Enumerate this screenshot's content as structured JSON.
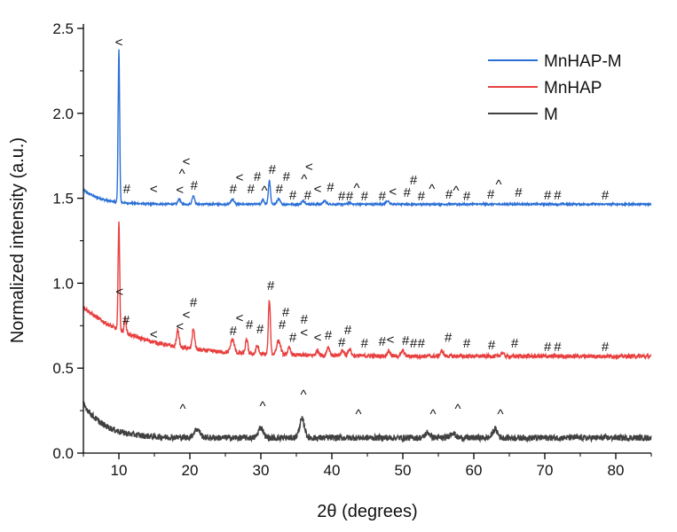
{
  "chart_data": {
    "type": "line",
    "title": "",
    "xlabel": "2θ (degrees)",
    "ylabel": "Normalized intensity (a.u.)",
    "xlim": [
      5,
      85
    ],
    "ylim": [
      0,
      2.5
    ],
    "xticks": [
      10,
      20,
      30,
      40,
      50,
      60,
      70,
      80
    ],
    "yticks": [
      0.0,
      0.5,
      1.0,
      1.5,
      2.0,
      2.5
    ],
    "ytick_labels": [
      "0.0",
      "0.5",
      "1.0",
      "1.5",
      "2.0",
      "2.5"
    ],
    "grid": false,
    "legend_position": "top-right",
    "series": [
      {
        "name": "MnHAP-M",
        "color": "#2a6fd6",
        "baseline": {
          "level": 1.465,
          "start_excess": 0.085,
          "decay": 2.5
        },
        "noise": 0.005,
        "peaks": [
          [
            10,
            0.9,
            0.15
          ],
          [
            18.5,
            0.03,
            0.25
          ],
          [
            20.5,
            0.05,
            0.25
          ],
          [
            26,
            0.03,
            0.3
          ],
          [
            30.3,
            0.03,
            0.2
          ],
          [
            31.2,
            0.14,
            0.2
          ],
          [
            32.5,
            0.03,
            0.3
          ],
          [
            36,
            0.02,
            0.3
          ],
          [
            39,
            0.02,
            0.3
          ],
          [
            47.8,
            0.02,
            0.3
          ],
          [
            42.5,
            0.01,
            0.3
          ]
        ],
        "annotations": [
          [
            "<",
            10,
            2.42
          ],
          [
            "#",
            11.1,
            1.555
          ],
          [
            "<",
            14.9,
            1.555
          ],
          [
            "^",
            18.9,
            1.644
          ],
          [
            "<",
            18.6,
            1.55
          ],
          [
            "<",
            19.5,
            1.519
          ],
          [
            "#",
            20.6,
            1.576
          ],
          [
            "#",
            26.1,
            1.555
          ],
          [
            "<",
            27,
            1.519
          ],
          [
            "#",
            28.6,
            1.555
          ],
          [
            "#",
            29.5,
            1.545
          ],
          [
            "^",
            30.5,
            1.545
          ],
          [
            "#",
            31.6,
            1.67
          ],
          [
            "#",
            32.6,
            1.555
          ],
          [
            "#",
            33.6,
            1.545
          ],
          [
            "#",
            34.5,
            1.519
          ],
          [
            "^",
            36.1,
            1.613
          ],
          [
            "<",
            36.8,
            1.56
          ],
          [
            "#",
            36.6,
            1.519
          ],
          [
            "<",
            38,
            1.555
          ],
          [
            "#",
            39.8,
            1.566
          ],
          [
            "#",
            41.4,
            1.514
          ],
          [
            "#",
            42.5,
            1.514
          ],
          [
            "^",
            43.5,
            1.56
          ],
          [
            "#",
            44.6,
            1.514
          ],
          [
            "#",
            47.1,
            1.514
          ],
          [
            "<",
            48.6,
            1.54
          ],
          [
            "#",
            50.6,
            1.534
          ],
          [
            "#",
            51.5,
            1.514
          ],
          [
            "#",
            52.6,
            1.514
          ],
          [
            "^",
            54.1,
            1.555
          ],
          [
            "#",
            56.5,
            1.524
          ],
          [
            "^",
            57.5,
            1.545
          ],
          [
            "#",
            59,
            1.514
          ],
          [
            "#",
            62.4,
            1.524
          ],
          [
            "^",
            63.5,
            1.581
          ],
          [
            "#",
            66.3,
            1.534
          ],
          [
            "#",
            70.4,
            1.519
          ],
          [
            "#",
            71.8,
            1.519
          ],
          [
            "#",
            78.5,
            1.519
          ]
        ]
      },
      {
        "name": "MnHAP",
        "color": "#e84040",
        "baseline": {
          "level": 0.57,
          "start_excess": 0.29,
          "decay": 8
        },
        "noise": 0.012,
        "peaks": [
          [
            10,
            0.65,
            0.15
          ],
          [
            10.9,
            0.08,
            0.2
          ],
          [
            18.3,
            0.1,
            0.25
          ],
          [
            20.5,
            0.12,
            0.25
          ],
          [
            26,
            0.08,
            0.35
          ],
          [
            28,
            0.08,
            0.25
          ],
          [
            29.5,
            0.05,
            0.25
          ],
          [
            31.2,
            0.32,
            0.2
          ],
          [
            32.5,
            0.08,
            0.4
          ],
          [
            34,
            0.04,
            0.3
          ],
          [
            38,
            0.03,
            0.3
          ],
          [
            39.5,
            0.05,
            0.3
          ],
          [
            41.5,
            0.03,
            0.3
          ],
          [
            42.5,
            0.04,
            0.3
          ],
          [
            48,
            0.03,
            0.3
          ],
          [
            50,
            0.03,
            0.3
          ],
          [
            55.5,
            0.03,
            0.3
          ],
          [
            64,
            0.02,
            0.3
          ]
        ],
        "annotations": [
          [
            "<",
            10.1,
            0.95
          ],
          [
            "#",
            11,
            0.783
          ],
          [
            "<",
            14.9,
            0.7
          ],
          [
            "<",
            18.6,
            0.746
          ],
          [
            "<",
            19.5,
            0.71
          ],
          [
            "#",
            20.5,
            0.793
          ],
          [
            "#",
            26.1,
            0.72
          ],
          [
            "<",
            27,
            0.68
          ],
          [
            "#",
            28.4,
            0.757
          ],
          [
            "#",
            29.9,
            0.73
          ],
          [
            "#",
            31.4,
            0.986
          ],
          [
            "#",
            33,
            0.757
          ],
          [
            "#",
            33.5,
            0.725
          ],
          [
            "#",
            34.5,
            0.68
          ],
          [
            "<",
            36.1,
            0.71
          ],
          [
            "#",
            36.1,
            0.652
          ],
          [
            "<",
            38,
            0.68
          ],
          [
            "#",
            39.5,
            0.694
          ],
          [
            "#",
            41.4,
            0.652
          ],
          [
            "#",
            42.25,
            0.715
          ],
          [
            "#",
            44.6,
            0.647
          ],
          [
            "#",
            47.1,
            0.658
          ],
          [
            "<",
            48.25,
            0.668
          ],
          [
            "#",
            50.4,
            0.663
          ],
          [
            "#",
            51.5,
            0.647
          ],
          [
            "#",
            52.6,
            0.647
          ],
          [
            "#",
            56.4,
            0.68
          ],
          [
            "#",
            59,
            0.647
          ],
          [
            "#",
            62.5,
            0.637
          ],
          [
            "#",
            65.75,
            0.647
          ],
          [
            "#",
            70.4,
            0.626
          ],
          [
            "#",
            71.8,
            0.626
          ],
          [
            "#",
            78.5,
            0.626
          ]
        ]
      },
      {
        "name": "M",
        "color": "#404040",
        "baseline": {
          "level": 0.09,
          "start_excess": 0.2,
          "decay": 3
        },
        "noise": 0.018,
        "peaks": [
          [
            21,
            0.05,
            0.6
          ],
          [
            30,
            0.06,
            0.5
          ],
          [
            35.8,
            0.11,
            0.5
          ],
          [
            53.5,
            0.03,
            0.5
          ],
          [
            57,
            0.03,
            0.5
          ],
          [
            63,
            0.05,
            0.5
          ]
        ],
        "annotations": [
          [
            "^",
            19,
            0.26
          ],
          [
            "^",
            30.25,
            0.277
          ],
          [
            "^",
            36,
            0.344
          ],
          [
            "^",
            43.75,
            0.23
          ],
          [
            "^",
            54.25,
            0.23
          ],
          [
            "^",
            57.75,
            0.26
          ],
          [
            "^",
            63.75,
            0.23
          ]
        ]
      }
    ]
  }
}
